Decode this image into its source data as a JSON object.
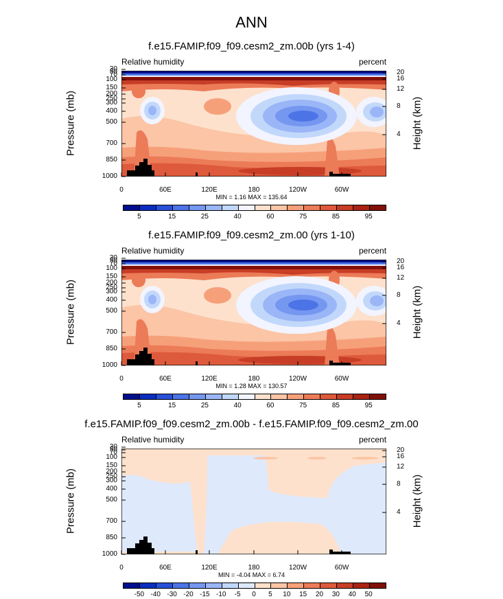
{
  "main_title": "ANN",
  "panels": [
    {
      "title": "f.e15.FAMIP.f09_f09.cesm2_zm.00b (yrs 1-4)",
      "left_label": "Relative humidity",
      "right_label": "percent",
      "ylabel": "Pressure (mb)",
      "rlabel": "Height (km)",
      "minmax": "MIN =   1.16  MAX = 135.64",
      "kind": "abs"
    },
    {
      "title": "f.e15.FAMIP.f09_f09.cesm2_zm.00 (yrs 1-10)",
      "left_label": "Relative humidity",
      "right_label": "percent",
      "ylabel": "Pressure (mb)",
      "rlabel": "Height (km)",
      "minmax": "MIN =   1.28  MAX = 130.57",
      "kind": "abs"
    },
    {
      "title": "f.e15.FAMIP.f09_f09.cesm2_zm.00b - f.e15.FAMIP.f09_f09.cesm2_zm.00",
      "left_label": "Relative humidity",
      "right_label": "percent",
      "ylabel": "Pressure (mb)",
      "rlabel": "Height (km)",
      "minmax": "MIN =  -4.04  MAX =   6.74",
      "kind": "diff"
    }
  ],
  "axes": {
    "yticks": [
      "30",
      "50",
      "70",
      "100",
      "150",
      "200",
      "250",
      "300",
      "400",
      "500",
      "700",
      "850",
      "1000"
    ],
    "rticks": [
      "20",
      "16",
      "12",
      "8",
      "4"
    ],
    "xticks": [
      "0",
      "60E",
      "120E",
      "180",
      "120W",
      "60W"
    ]
  },
  "colorbars": {
    "abs": {
      "labels": [
        "5",
        "15",
        "25",
        "40",
        "60",
        "75",
        "85",
        "95"
      ],
      "colors": [
        "#000f8c",
        "#0a2ebf",
        "#2850d8",
        "#4c74e6",
        "#7597f0",
        "#9ab6f7",
        "#c2d8fb",
        "#f2f4ff",
        "#fde1cc",
        "#fbc5a6",
        "#f6a07a",
        "#ec7b58",
        "#de5a3c",
        "#c73d26",
        "#a92313",
        "#82100a"
      ]
    },
    "diff": {
      "labels": [
        "-50",
        "-40",
        "-30",
        "-20",
        "-15",
        "-10",
        "-5",
        "0",
        "5",
        "10",
        "15",
        "20",
        "30",
        "40",
        "50"
      ],
      "colors": [
        "#000f8c",
        "#0a2ebf",
        "#2850d8",
        "#4c74e6",
        "#7597f0",
        "#9ab6f7",
        "#c2d8fb",
        "#dfe9fc",
        "#fde1cc",
        "#fbc5a6",
        "#f6a07a",
        "#ec7b58",
        "#de5a3c",
        "#c73d26",
        "#a92313",
        "#82100a"
      ]
    }
  },
  "chart_data": [
    {
      "type": "heatmap",
      "title": "f.e15.FAMIP.f09_f09.cesm2_zm.00b (yrs 1-4)",
      "variable": "Relative humidity",
      "units": "percent",
      "xlabel": "",
      "ylabel": "Pressure (mb)",
      "y2label": "Height (km)",
      "x_ticks": [
        "0",
        "60E",
        "120E",
        "180",
        "120W",
        "60W"
      ],
      "y_ticks_mb": [
        30,
        50,
        70,
        100,
        150,
        200,
        250,
        300,
        400,
        500,
        700,
        850,
        1000
      ],
      "y2_ticks_km": [
        20,
        16,
        12,
        8,
        4
      ],
      "min": 1.16,
      "max": 135.64,
      "contour_levels": [
        5,
        10,
        15,
        20,
        25,
        30,
        40,
        50,
        60,
        65,
        70,
        75,
        80,
        85,
        90,
        95
      ],
      "y_scale": "log"
    },
    {
      "type": "heatmap",
      "title": "f.e15.FAMIP.f09_f09.cesm2_zm.00 (yrs 1-10)",
      "variable": "Relative humidity",
      "units": "percent",
      "xlabel": "",
      "ylabel": "Pressure (mb)",
      "y2label": "Height (km)",
      "x_ticks": [
        "0",
        "60E",
        "120E",
        "180",
        "120W",
        "60W"
      ],
      "y_ticks_mb": [
        30,
        50,
        70,
        100,
        150,
        200,
        250,
        300,
        400,
        500,
        700,
        850,
        1000
      ],
      "y2_ticks_km": [
        20,
        16,
        12,
        8,
        4
      ],
      "min": 1.28,
      "max": 130.57,
      "contour_levels": [
        5,
        10,
        15,
        20,
        25,
        30,
        40,
        50,
        60,
        65,
        70,
        75,
        80,
        85,
        90,
        95
      ],
      "y_scale": "log"
    },
    {
      "type": "heatmap",
      "title": "f.e15.FAMIP.f09_f09.cesm2_zm.00b - f.e15.FAMIP.f09_f09.cesm2_zm.00",
      "variable": "Relative humidity",
      "units": "percent",
      "xlabel": "",
      "ylabel": "Pressure (mb)",
      "y2label": "Height (km)",
      "x_ticks": [
        "0",
        "60E",
        "120E",
        "180",
        "120W",
        "60W"
      ],
      "y_ticks_mb": [
        30,
        50,
        70,
        100,
        150,
        200,
        250,
        300,
        400,
        500,
        700,
        850,
        1000
      ],
      "y2_ticks_km": [
        20,
        16,
        12,
        8,
        4
      ],
      "min": -4.04,
      "max": 6.74,
      "contour_levels": [
        -50,
        -40,
        -30,
        -20,
        -15,
        -10,
        -5,
        0,
        5,
        10,
        15,
        20,
        30,
        40,
        50
      ],
      "y_scale": "log"
    }
  ]
}
